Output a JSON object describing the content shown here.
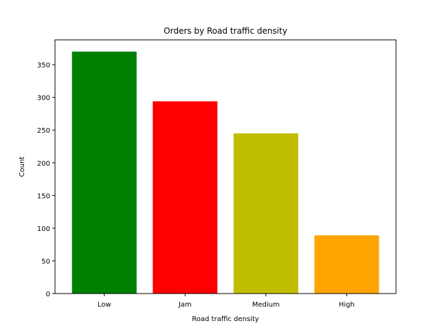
{
  "chart_data": {
    "type": "bar",
    "title": "Orders by Road traffic density",
    "xlabel": "Road traffic density",
    "ylabel": "Count",
    "categories": [
      "Low",
      "Jam",
      "Medium",
      "High"
    ],
    "values": [
      370,
      294,
      245,
      89
    ],
    "colors": [
      "#008000",
      "#ff0000",
      "#bfbf00",
      "#ffa500"
    ],
    "ylim": [
      0,
      388
    ],
    "yticks": [
      0,
      50,
      100,
      150,
      200,
      250,
      300,
      350
    ],
    "grid": false,
    "legend": "none"
  }
}
